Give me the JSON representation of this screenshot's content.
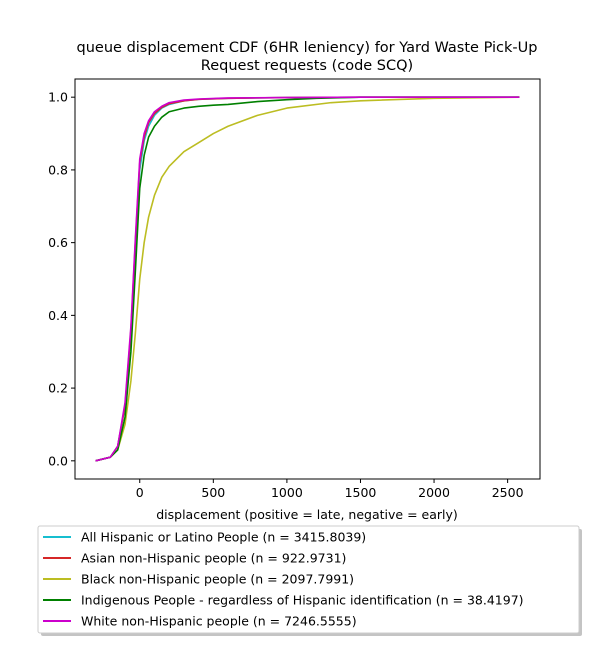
{
  "chart_data": {
    "type": "line",
    "title_lines": [
      "queue displacement CDF (6HR leniency) for Yard Waste Pick-Up",
      "Request  requests (code SCQ)"
    ],
    "xlabel": "displacement (positive = late, negative = early)",
    "ylabel": "",
    "xlim": [
      -440,
      2720
    ],
    "ylim": [
      -0.05,
      1.05
    ],
    "xticks": [
      0,
      500,
      1000,
      1500,
      2000,
      2500
    ],
    "xtick_labels": [
      "0",
      "500",
      "1000",
      "1500",
      "2000",
      "2500"
    ],
    "yticks": [
      0.0,
      0.2,
      0.4,
      0.6,
      0.8,
      1.0
    ],
    "ytick_labels": [
      "0.0",
      "0.2",
      "0.4",
      "0.6",
      "0.8",
      "1.0"
    ],
    "grid": false,
    "legend_position": "below plot",
    "series": [
      {
        "name": "All Hispanic or Latino People (n = 3415.8039)",
        "color": "#17becf",
        "x": [
          -300,
          -200,
          -150,
          -100,
          -60,
          -30,
          0,
          30,
          60,
          100,
          150,
          200,
          300,
          400,
          600,
          1000,
          1500,
          2580
        ],
        "y": [
          0.0,
          0.01,
          0.04,
          0.15,
          0.35,
          0.58,
          0.8,
          0.88,
          0.92,
          0.95,
          0.97,
          0.98,
          0.99,
          0.994,
          0.997,
          0.999,
          1.0,
          1.0
        ]
      },
      {
        "name": "Asian non-Hispanic people (n = 922.9731)",
        "color": "#d62728",
        "x": [
          -300,
          -200,
          -150,
          -100,
          -60,
          -30,
          0,
          30,
          60,
          100,
          150,
          200,
          300,
          400,
          600,
          1000,
          1500,
          2580
        ],
        "y": [
          0.0,
          0.01,
          0.04,
          0.15,
          0.36,
          0.6,
          0.82,
          0.89,
          0.93,
          0.955,
          0.972,
          0.982,
          0.99,
          0.994,
          0.997,
          0.999,
          1.0,
          1.0
        ]
      },
      {
        "name": "Black non-Hispanic people (n = 2097.7991)",
        "color": "#bcbd22",
        "x": [
          -300,
          -200,
          -150,
          -100,
          -60,
          -30,
          0,
          30,
          60,
          100,
          150,
          200,
          300,
          400,
          500,
          600,
          800,
          1000,
          1300,
          1500,
          2000,
          2580
        ],
        "y": [
          0.0,
          0.01,
          0.03,
          0.1,
          0.22,
          0.35,
          0.5,
          0.6,
          0.67,
          0.73,
          0.78,
          0.81,
          0.85,
          0.875,
          0.9,
          0.92,
          0.95,
          0.97,
          0.985,
          0.99,
          0.997,
          1.0
        ]
      },
      {
        "name": "Indigenous People - regardless of Hispanic identification (n = 38.4197)",
        "color": "#008000",
        "x": [
          -300,
          -200,
          -150,
          -100,
          -60,
          -30,
          0,
          30,
          60,
          100,
          150,
          200,
          300,
          400,
          500,
          600,
          800,
          1000,
          1200,
          1500,
          2000,
          2580
        ],
        "y": [
          0.0,
          0.01,
          0.03,
          0.12,
          0.3,
          0.52,
          0.75,
          0.84,
          0.89,
          0.92,
          0.945,
          0.96,
          0.97,
          0.975,
          0.978,
          0.98,
          0.988,
          0.993,
          0.997,
          1.0,
          1.0,
          1.0
        ]
      },
      {
        "name": "White non-Hispanic people (n = 7246.5555)",
        "color": "#cc00cc",
        "x": [
          -300,
          -200,
          -150,
          -100,
          -60,
          -30,
          0,
          30,
          60,
          100,
          150,
          200,
          300,
          400,
          600,
          1000,
          1500,
          2580
        ],
        "y": [
          0.0,
          0.01,
          0.04,
          0.16,
          0.37,
          0.61,
          0.83,
          0.9,
          0.935,
          0.96,
          0.975,
          0.985,
          0.992,
          0.995,
          0.998,
          0.999,
          1.0,
          1.0
        ]
      }
    ]
  }
}
